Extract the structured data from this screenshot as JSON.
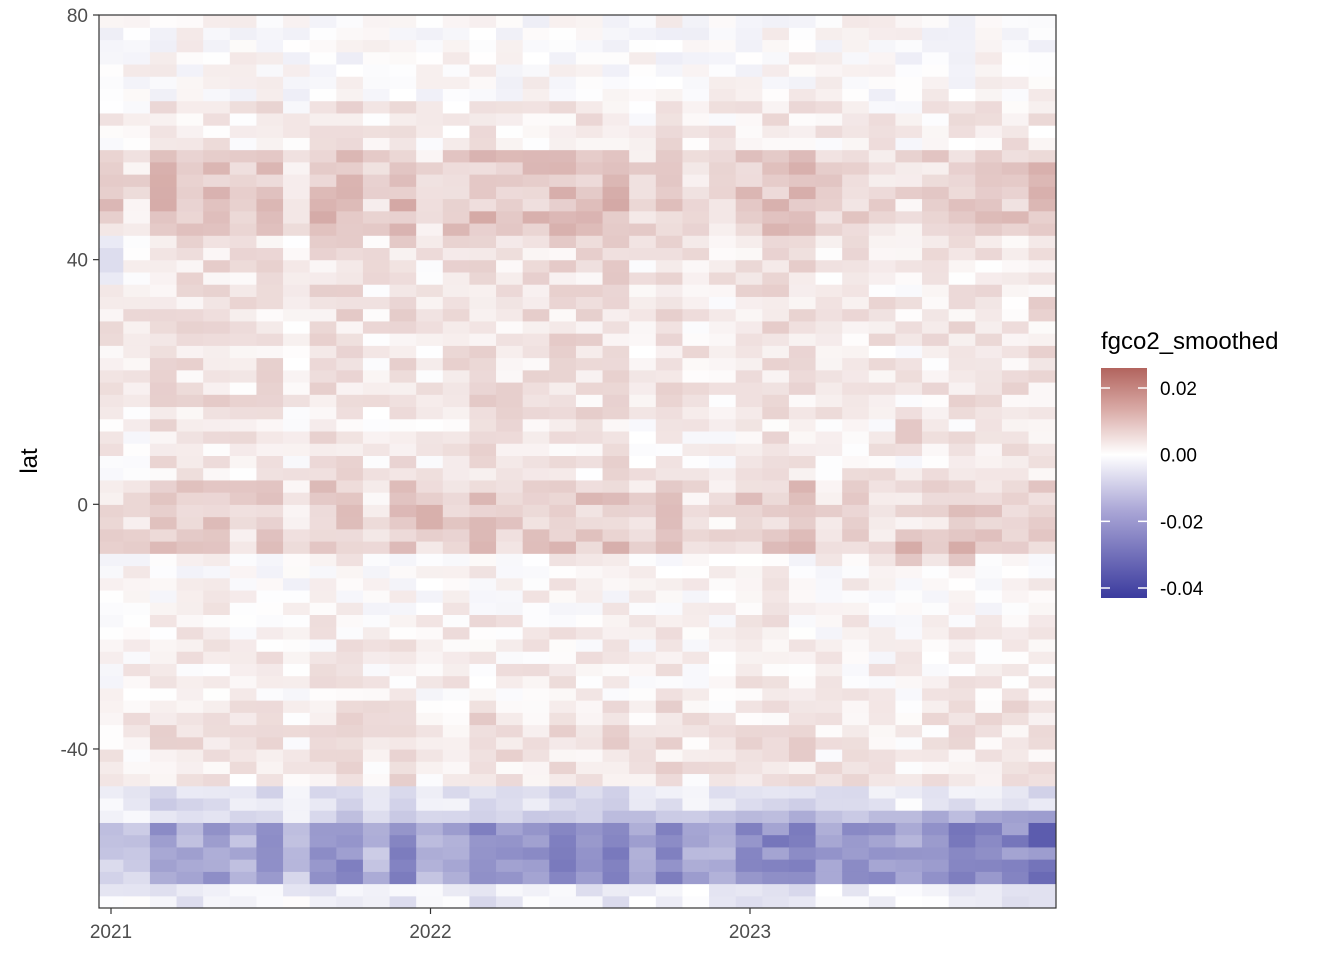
{
  "chart_data": {
    "type": "heatmap",
    "title": "",
    "xlabel": "",
    "ylabel": "lat",
    "x_ticks": [
      "2021",
      "2022",
      "2023"
    ],
    "x_range": [
      "2021-01",
      "2023-12"
    ],
    "y_ticks": [
      80,
      40,
      0,
      -40
    ],
    "ylim": [
      -66,
      80
    ],
    "grid": false,
    "legend": {
      "title": "fgco2_smoothed",
      "position": "right",
      "labels": [
        "0.02",
        "0.00",
        "-0.02",
        "-0.04"
      ],
      "values": [
        0.02,
        0.0,
        -0.02,
        -0.04
      ],
      "range": [
        -0.043,
        0.026
      ]
    },
    "colors": {
      "high": "#b2645e",
      "mid": "#ffffff",
      "low": "#3b3b9e"
    },
    "lat_bands": [
      {
        "from": 66,
        "to": 80,
        "mean": 0.0
      },
      {
        "from": 58,
        "to": 66,
        "mean": 0.003
      },
      {
        "from": 44,
        "to": 58,
        "mean": 0.008
      },
      {
        "from": 30,
        "to": 44,
        "mean": 0.004
      },
      {
        "from": 14,
        "to": 30,
        "mean": 0.004
      },
      {
        "from": 4,
        "to": 14,
        "mean": 0.003
      },
      {
        "from": -8,
        "to": 4,
        "mean": 0.007
      },
      {
        "from": -18,
        "to": -8,
        "mean": 0.001
      },
      {
        "from": -32,
        "to": -18,
        "mean": 0.002
      },
      {
        "from": -46,
        "to": -32,
        "mean": 0.004
      },
      {
        "from": -52,
        "to": -46,
        "mean": -0.006
      },
      {
        "from": -62,
        "to": -52,
        "mean": -0.016
      },
      {
        "from": -66,
        "to": -62,
        "mean": -0.004
      }
    ],
    "notable_cells": [
      {
        "x": "2021-01",
        "lat": 49,
        "value": 0.012
      },
      {
        "x": "2021-01",
        "lat": 40,
        "value": -0.009
      },
      {
        "x": "2022-01",
        "lat": -2,
        "value": 0.016
      },
      {
        "x": "2022-03",
        "lat": 52,
        "value": 0.011
      },
      {
        "x": "2023-07",
        "lat": 12,
        "value": 0.011
      },
      {
        "x": "2023-07",
        "lat": -7,
        "value": 0.014
      },
      {
        "x": "2023-09",
        "lat": -7,
        "value": 0.014
      },
      {
        "x": "2023-02",
        "lat": -55,
        "value": -0.03
      },
      {
        "x": "2023-12",
        "lat": -54,
        "value": -0.043
      },
      {
        "x": "2023-11",
        "lat": -55,
        "value": -0.03
      }
    ]
  }
}
